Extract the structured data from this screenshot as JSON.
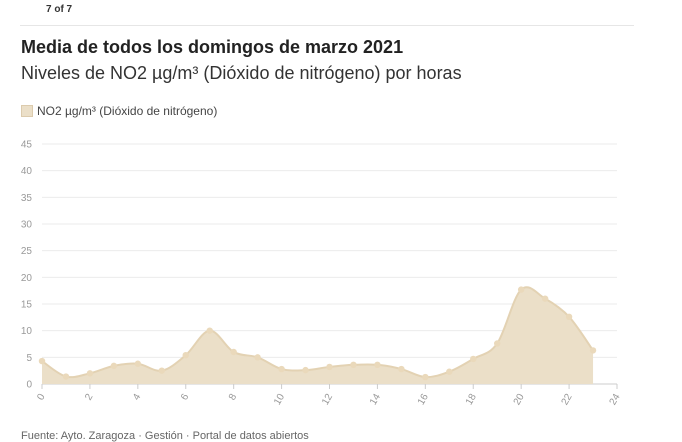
{
  "pager": {
    "label": "7 of 7"
  },
  "header": {
    "title": "Media de todos los domingos de marzo 2021",
    "subtitle": "Niveles de NO2 µg/m³ (Dióxido de nitrógeno) por horas"
  },
  "legend": {
    "label": "NO2 µg/m³ (Dióxido de nitrógeno)"
  },
  "footer": {
    "source": "Fuente: Ayto. Zaragoza · Gestión · Portal de datos abiertos"
  },
  "colors": {
    "fill": "#ebdfc8",
    "line": "#e3d2b3",
    "marker": "#ead9bb",
    "grid": "#ebebeb",
    "axis": "#cccccc"
  },
  "chart_data": {
    "type": "area",
    "title": "Media de todos los domingos de marzo 2021",
    "subtitle": "Niveles de NO2 µg/m³ (Dióxido de nitrógeno) por horas",
    "xlabel": "",
    "ylabel": "",
    "xlim": [
      0,
      24
    ],
    "ylim": [
      0,
      45
    ],
    "x_ticks": [
      0,
      2,
      4,
      6,
      8,
      10,
      12,
      14,
      16,
      18,
      20,
      22,
      24
    ],
    "y_ticks": [
      0,
      5,
      10,
      15,
      20,
      25,
      30,
      35,
      40,
      45
    ],
    "grid": true,
    "legend_position": "top-left",
    "series": [
      {
        "name": "NO2 µg/m³ (Dióxido de nitrógeno)",
        "x": [
          0,
          1,
          2,
          3,
          4,
          5,
          6,
          7,
          8,
          9,
          10,
          11,
          12,
          13,
          14,
          15,
          16,
          17,
          18,
          19,
          20,
          21,
          22,
          23
        ],
        "values": [
          4.3,
          1.4,
          2.0,
          3.4,
          3.8,
          2.5,
          5.4,
          10.0,
          6.0,
          5.0,
          2.8,
          2.6,
          3.2,
          3.6,
          3.6,
          2.8,
          1.3,
          2.3,
          4.7,
          7.6,
          17.7,
          16.0,
          12.6,
          6.3
        ]
      }
    ]
  }
}
